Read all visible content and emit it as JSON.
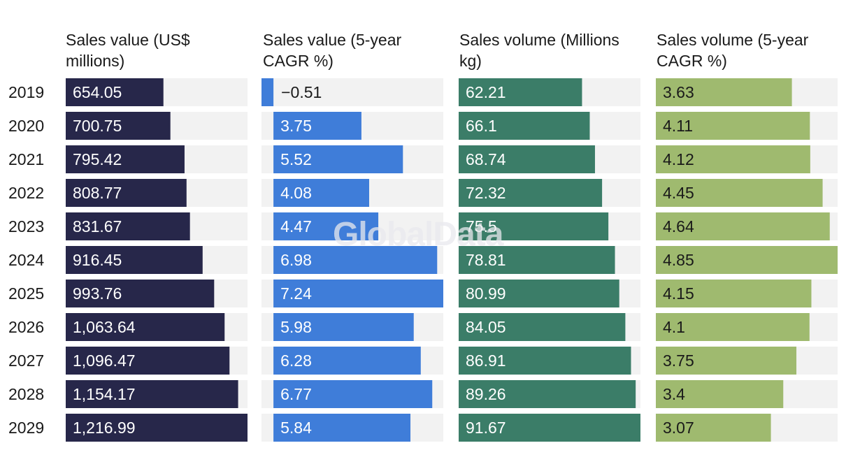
{
  "chart_data": {
    "type": "bar",
    "orientation": "horizontal",
    "categories": [
      "2019",
      "2020",
      "2021",
      "2022",
      "2023",
      "2024",
      "2025",
      "2026",
      "2027",
      "2028",
      "2029"
    ],
    "series": [
      {
        "name": "Sales value (US$ millions)",
        "color": "#27274a",
        "text_color": "#ffffff",
        "values": [
          654.05,
          700.75,
          795.42,
          808.77,
          831.67,
          916.45,
          993.76,
          1063.64,
          1096.47,
          1154.17,
          1216.99
        ],
        "labels": [
          "654.05",
          "700.75",
          "795.42",
          "808.77",
          "831.67",
          "916.45",
          "993.76",
          "1,063.64",
          "1,096.47",
          "1,154.17",
          "1,216.99"
        ],
        "min": 0,
        "max": 1216.99
      },
      {
        "name": "Sales value (5-year CAGR %)",
        "color": "#3f7dd9",
        "text_color": "#ffffff",
        "values": [
          -0.51,
          3.75,
          5.52,
          4.08,
          4.47,
          6.98,
          7.24,
          5.98,
          6.28,
          6.77,
          5.84
        ],
        "labels": [
          "−0.51",
          "3.75",
          "5.52",
          "4.08",
          "4.47",
          "6.98",
          "7.24",
          "5.98",
          "6.28",
          "6.77",
          "5.84"
        ],
        "min": -0.51,
        "max": 7.24
      },
      {
        "name": "Sales volume (Millions kg)",
        "color": "#3b7d68",
        "text_color": "#ffffff",
        "values": [
          62.21,
          66.1,
          68.74,
          72.32,
          75.5,
          78.81,
          80.99,
          84.05,
          86.91,
          89.26,
          91.67
        ],
        "labels": [
          "62.21",
          "66.1",
          "68.74",
          "72.32",
          "75.5",
          "78.81",
          "80.99",
          "84.05",
          "86.91",
          "89.26",
          "91.67"
        ],
        "min": 0,
        "max": 91.67
      },
      {
        "name": "Sales volume (5-year CAGR %)",
        "color": "#9fba6f",
        "text_color": "#1a1a1a",
        "values": [
          3.63,
          4.11,
          4.12,
          4.45,
          4.64,
          4.85,
          4.15,
          4.1,
          3.75,
          3.4,
          3.07
        ],
        "labels": [
          "3.63",
          "4.11",
          "4.12",
          "4.45",
          "4.64",
          "4.85",
          "4.15",
          "4.1",
          "3.75",
          "3.4",
          "3.07"
        ],
        "min": 0,
        "max": 4.85
      }
    ],
    "track_color": "#f2f2f2",
    "watermark": "GlobalData"
  }
}
